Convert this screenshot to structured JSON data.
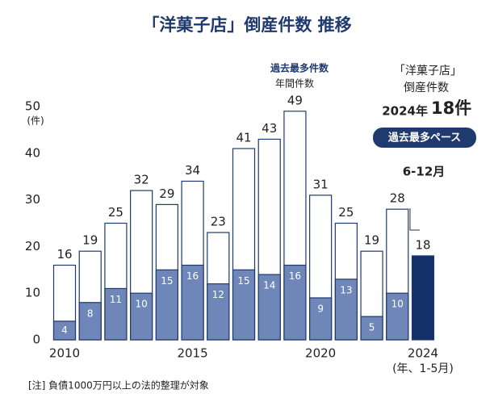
{
  "chart_data": {
    "type": "bar",
    "title": "「洋菓子店」倒産件数 推移",
    "categories": [
      "2010",
      null,
      null,
      null,
      null,
      "2015",
      null,
      null,
      null,
      null,
      "2020",
      null,
      null,
      null,
      "2024"
    ],
    "series": [
      {
        "color": "#ffffff",
        "values": [
          16,
          19,
          25,
          32,
          29,
          34,
          23,
          41,
          43,
          49,
          31,
          25,
          19,
          28,
          null
        ]
      },
      {
        "color": "#6f86b8",
        "values": [
          4,
          8,
          11,
          10,
          15,
          16,
          12,
          15,
          14,
          16,
          9,
          13,
          5,
          10,
          null
        ]
      },
      {
        "color": "#13306a",
        "values": [
          null,
          null,
          null,
          null,
          null,
          null,
          null,
          null,
          null,
          null,
          null,
          null,
          null,
          null,
          18
        ]
      }
    ],
    "ylim": [
      0,
      50
    ],
    "yticks": [
      0,
      10,
      20,
      30,
      40,
      50
    ],
    "grid": false,
    "y_label": "(件)",
    "x_note": "(年、1-5月)",
    "record_label": "過去最多件数",
    "record_sub": "年間件数",
    "callout": {
      "line1": "「洋菓子店」",
      "line2": "倒産件数",
      "year": "2024年",
      "count": "18件",
      "badge": "過去最多ペース"
    },
    "remaining_label": "6-12月",
    "note": "[注] 負債1000万円以上の法的整理が対象"
  }
}
